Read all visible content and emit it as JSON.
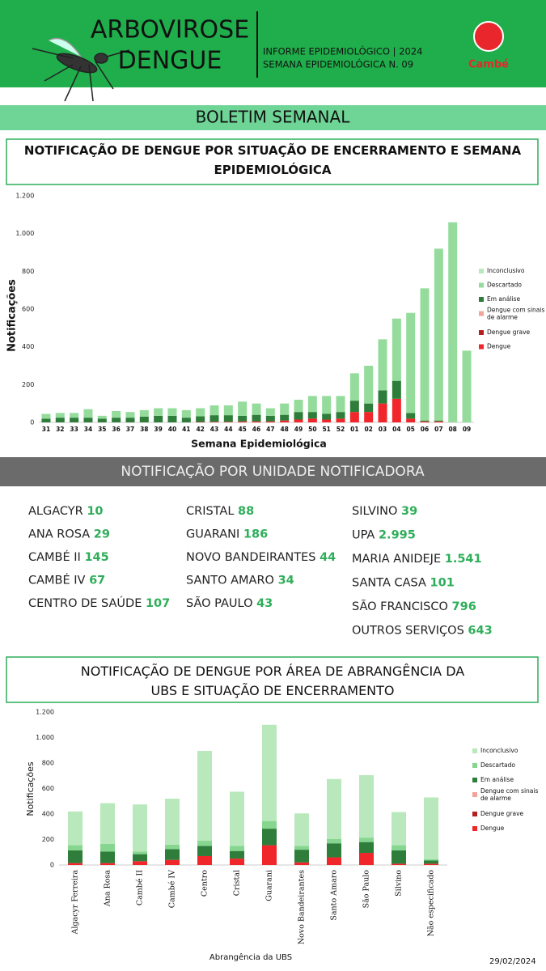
{
  "header": {
    "title1": "ARBOVIROSE",
    "title2": "DENGUE",
    "info1": "INFORME EPIDEMIOLÓGICO | 2024",
    "info2": "SEMANA EPIDEMIOLÓGICA  N. 09",
    "logo": "Cambé"
  },
  "banner": "BOLETIM SEMANAL",
  "units": {
    "title": "NOTIFICAÇÃO POR UNIDADE NOTIFICADORA",
    "columns": [
      [
        {
          "name": "ALGACYR",
          "count": "10"
        },
        {
          "name": "ANA ROSA",
          "count": "29"
        },
        {
          "name": "CAMBÉ II",
          "count": "145"
        },
        {
          "name": "CAMBÉ IV",
          "count": "67"
        },
        {
          "name": "CENTRO DE SAÚDE",
          "count": "107"
        }
      ],
      [
        {
          "name": "CRISTAL",
          "count": "88"
        },
        {
          "name": "GUARANI",
          "count": "186"
        },
        {
          "name": "NOVO BANDEIRANTES",
          "count": "44"
        },
        {
          "name": "SANTO AMARO",
          "count": "34"
        },
        {
          "name": "SÃO PAULO",
          "count": "43"
        }
      ],
      [
        {
          "name": "SILVINO",
          "count": "39"
        },
        {
          "name": "UPA",
          "count": "2.995"
        },
        {
          "name": "MARIA ANIDEJE",
          "count": "1.541"
        },
        {
          "name": "SANTA CASA",
          "count": "101"
        },
        {
          "name": "SÃO FRANCISCO",
          "count": "796"
        },
        {
          "name": "OUTROS SERVIÇOS",
          "count": "643"
        }
      ]
    ]
  },
  "date": "29/02/2024",
  "chart_data": [
    {
      "type": "stacked_bar",
      "title": "NOTIFICAÇÃO DE DENGUE POR SITUAÇÃO DE ENCERRAMENTO E SEMANA EPIDEMIOLÓGICA",
      "x_label": "Semana Epidemiológica",
      "y_label": "Notificações",
      "categories": [
        "31",
        "32",
        "33",
        "34",
        "35",
        "36",
        "37",
        "38",
        "39",
        "40",
        "41",
        "42",
        "43",
        "44",
        "45",
        "46",
        "47",
        "48",
        "49",
        "50",
        "51",
        "52",
        "01",
        "02",
        "03",
        "04",
        "05",
        "06",
        "07",
        "08",
        "09"
      ],
      "series": [
        {
          "name": "Inconclusivo",
          "color": "#b8e8bb",
          "values": [
            0,
            0,
            0,
            0,
            0,
            0,
            0,
            0,
            0,
            0,
            0,
            0,
            0,
            0,
            0,
            0,
            0,
            0,
            0,
            0,
            0,
            0,
            0,
            0,
            0,
            0,
            0,
            0,
            0,
            0,
            0
          ]
        },
        {
          "name": "Descartado",
          "color": "#95dc9c",
          "values": [
            25,
            25,
            25,
            45,
            15,
            35,
            30,
            35,
            40,
            40,
            40,
            43,
            52,
            52,
            75,
            60,
            40,
            60,
            65,
            85,
            95,
            85,
            145,
            200,
            270,
            330,
            530,
            700,
            910,
            1060,
            380
          ]
        },
        {
          "name": "Em análise",
          "color": "#2e7d3a",
          "values": [
            20,
            25,
            25,
            25,
            20,
            25,
            25,
            30,
            35,
            35,
            25,
            30,
            35,
            35,
            30,
            35,
            30,
            30,
            40,
            35,
            30,
            35,
            60,
            45,
            70,
            95,
            30,
            5,
            5,
            0,
            0
          ]
        },
        {
          "name": "Dengue com sinais de alarme",
          "color": "#f2a49c",
          "values": [
            0,
            0,
            0,
            0,
            0,
            0,
            0,
            0,
            0,
            0,
            0,
            0,
            0,
            0,
            0,
            0,
            0,
            0,
            0,
            0,
            0,
            0,
            0,
            0,
            0,
            0,
            0,
            0,
            0,
            0,
            0
          ]
        },
        {
          "name": "Dengue grave",
          "color": "#b3201e",
          "values": [
            0,
            0,
            0,
            0,
            0,
            0,
            0,
            0,
            0,
            0,
            0,
            0,
            0,
            0,
            0,
            0,
            0,
            0,
            0,
            0,
            0,
            0,
            0,
            0,
            0,
            0,
            0,
            0,
            0,
            0,
            0
          ]
        },
        {
          "name": "Dengue",
          "color": "#f0262a",
          "values": [
            0,
            0,
            0,
            0,
            0,
            0,
            0,
            0,
            0,
            0,
            0,
            2,
            3,
            3,
            5,
            5,
            5,
            10,
            15,
            20,
            15,
            20,
            55,
            55,
            100,
            125,
            20,
            5,
            5,
            0,
            0
          ]
        }
      ],
      "ylim": [
        0,
        1200
      ],
      "yticks": [
        0,
        200,
        400,
        600,
        800,
        {
          "value": 1000,
          "label": "1.000"
        },
        {
          "value": 1200,
          "label": "1.200"
        }
      ]
    },
    {
      "type": "stacked_bar",
      "title": "NOTIFICAÇÃO DE DENGUE POR ÁREA DE ABRANGÊNCIA DA UBS E SITUAÇÃO DE ENCERRAMENTO",
      "x_label": "Abrangência da UBS",
      "y_label": "Notificações",
      "categories": [
        "Algacyr Ferreira",
        "Ana Rosa",
        "Cambé II",
        "Cambé IV",
        "Centro",
        "Cristal",
        "Guarani",
        "Novo Bandeirantes",
        "Santo Amaro",
        "São Paulo",
        "Silvino",
        "Não especificado"
      ],
      "series": [
        {
          "name": "Inconclusivo",
          "color": "#b8e8bb",
          "values": [
            265,
            320,
            370,
            360,
            705,
            425,
            755,
            255,
            470,
            490,
            260,
            485
          ]
        },
        {
          "name": "Descartado",
          "color": "#86d68f",
          "values": [
            40,
            60,
            20,
            35,
            40,
            40,
            60,
            30,
            35,
            35,
            40,
            10
          ]
        },
        {
          "name": "Em análise",
          "color": "#2e7d3a",
          "values": [
            100,
            90,
            55,
            85,
            80,
            60,
            130,
            100,
            110,
            85,
            105,
            25
          ]
        },
        {
          "name": "Dengue com sinais de alarme",
          "color": "#f2a49c",
          "values": [
            0,
            0,
            0,
            0,
            0,
            0,
            0,
            0,
            0,
            0,
            0,
            0
          ]
        },
        {
          "name": "Dengue grave",
          "color": "#b3201e",
          "values": [
            0,
            0,
            0,
            0,
            0,
            0,
            0,
            0,
            0,
            0,
            0,
            0
          ]
        },
        {
          "name": "Dengue",
          "color": "#f0262a",
          "values": [
            15,
            15,
            30,
            40,
            70,
            50,
            155,
            20,
            60,
            95,
            10,
            10
          ]
        }
      ],
      "ylim": [
        0,
        1200
      ],
      "yticks": [
        0,
        200,
        400,
        600,
        800,
        {
          "value": 1000,
          "label": "1.000"
        },
        {
          "value": 1200,
          "label": "1.200"
        }
      ]
    }
  ]
}
